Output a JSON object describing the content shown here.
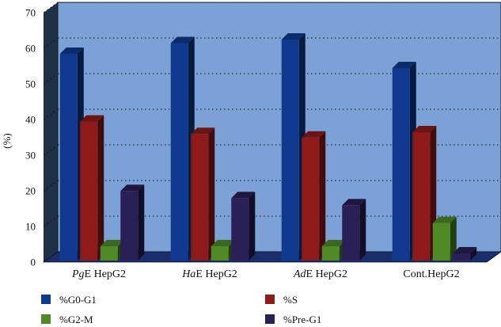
{
  "chart_data": {
    "type": "bar",
    "ylabel": "(%)",
    "ylim": [
      0,
      70
    ],
    "yticks": [
      0,
      10,
      20,
      30,
      40,
      50,
      60,
      70
    ],
    "grid": true,
    "legend_position": "bottom",
    "categories": [
      {
        "prefix": "Pg",
        "suffix": "E HepG2"
      },
      {
        "prefix": "Ha",
        "suffix": "E HepG2"
      },
      {
        "prefix": "Ad",
        "suffix": "E HepG2"
      },
      {
        "prefix": "",
        "suffix": "Cont.HepG2"
      }
    ],
    "series": [
      {
        "name": "%G0-G1",
        "color": "#0f3a8f",
        "values": [
          58,
          61,
          62,
          54
        ]
      },
      {
        "name": "%S",
        "color": "#8e1a1a",
        "values": [
          39,
          35.5,
          34.5,
          36
        ]
      },
      {
        "name": "%G2-M",
        "color": "#4f8a26",
        "values": [
          4,
          4,
          4,
          10.5
        ]
      },
      {
        "name": "%Pre-G1",
        "color": "#2a1f57",
        "values": [
          19.5,
          17.5,
          15.5,
          2
        ]
      }
    ],
    "colors": {
      "plot_bg": "#7ba1d6",
      "side_wall": "#1f3146",
      "floor": "#1a2e6b"
    }
  }
}
